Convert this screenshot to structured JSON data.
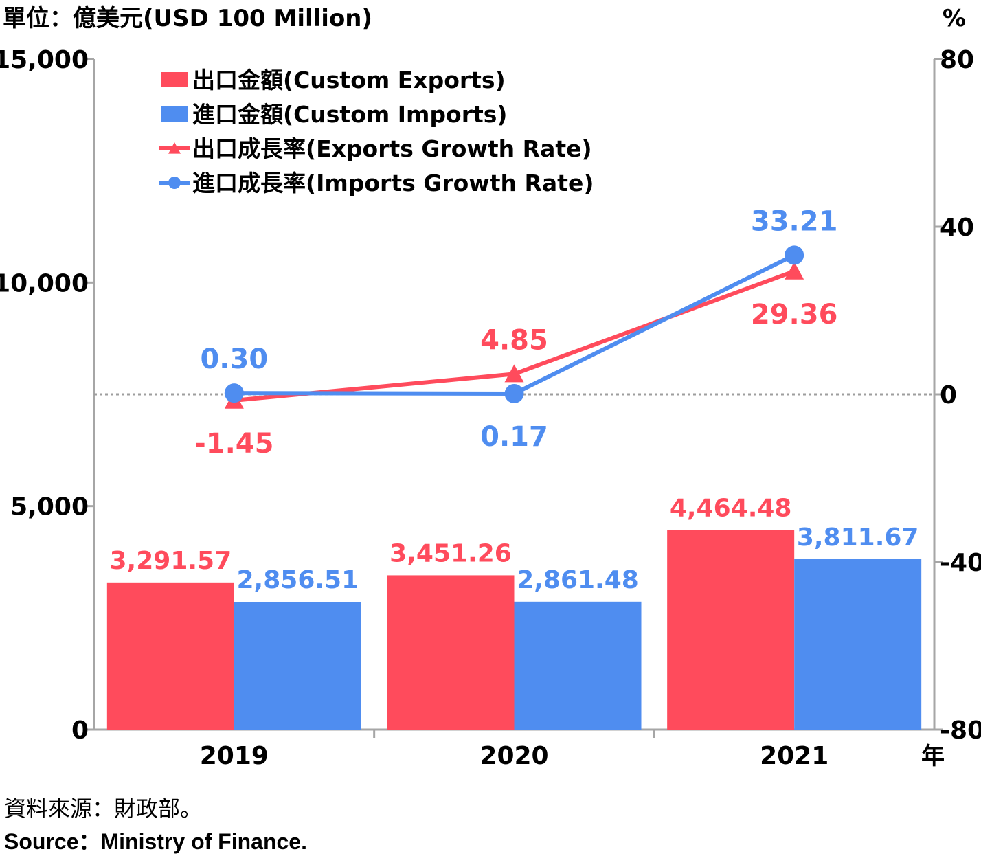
{
  "chart_data": {
    "type": "bar",
    "unit_left": "單位：億美元(USD 100 Million)",
    "unit_right": "%",
    "x_unit": "年",
    "categories": [
      "2019",
      "2020",
      "2021"
    ],
    "bar_series": [
      {
        "name": "出口金額(Custom Exports)",
        "color": "#ff4b5c",
        "values": [
          3291.57,
          3451.26,
          4464.48
        ],
        "labels": [
          "3,291.57",
          "3,451.26",
          "4,464.48"
        ]
      },
      {
        "name": "進口金額(Custom Imports)",
        "color": "#4f8df0",
        "values": [
          2856.51,
          2861.48,
          3811.67
        ],
        "labels": [
          "2,856.51",
          "2,861.48",
          "3,811.67"
        ]
      }
    ],
    "line_series": [
      {
        "name": "出口成長率(Exports Growth Rate)",
        "color": "#ff4b5c",
        "marker": "triangle",
        "values": [
          -1.45,
          4.85,
          29.36
        ],
        "labels": [
          "-1.45",
          "4.85",
          "29.36"
        ]
      },
      {
        "name": "進口成長率(Imports Growth Rate)",
        "color": "#4f8df0",
        "marker": "circle",
        "values": [
          0.3,
          0.17,
          33.21
        ],
        "labels": [
          "0.30",
          "0.17",
          "33.21"
        ]
      }
    ],
    "y_left": {
      "min": 0,
      "max": 15000,
      "ticks": [
        0,
        5000,
        10000,
        15000
      ],
      "tick_labels": [
        "0",
        "5,000",
        "10,000",
        "15,000"
      ]
    },
    "y_right": {
      "min": -80,
      "max": 80,
      "ticks": [
        -80,
        -40,
        0,
        40,
        80
      ],
      "tick_labels": [
        "-80",
        "-40",
        "0",
        "40",
        "80"
      ]
    },
    "zero_reference_line": "dotted",
    "legend": "top-left",
    "grid": false
  },
  "source": {
    "cn": "資料來源：財政部。",
    "en": "Source：Ministry of Finance."
  }
}
